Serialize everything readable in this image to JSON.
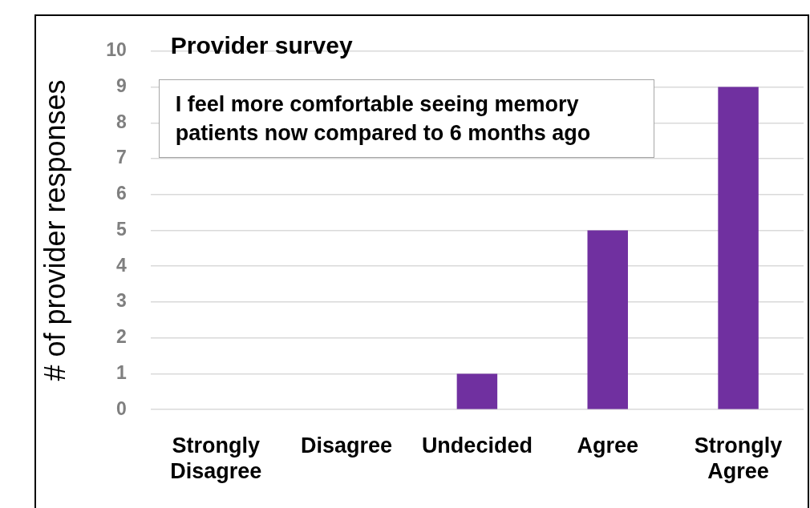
{
  "chart_data": {
    "type": "bar",
    "title": "Provider survey",
    "ylabel": "# of provider responses",
    "categories": [
      "Strongly Disagree",
      "Disagree",
      "Undecided",
      "Agree",
      "Strongly Agree"
    ],
    "values": [
      0,
      0,
      1,
      5,
      9
    ],
    "color": "#7030a0",
    "ylim": [
      0,
      10
    ],
    "yticks": [
      0,
      1,
      2,
      3,
      4,
      5,
      6,
      7,
      8,
      9,
      10
    ],
    "grid": "y",
    "legend": false,
    "annotations": [
      "I feel more comfortable seeing memory patients now compared to 6 months ago"
    ]
  }
}
